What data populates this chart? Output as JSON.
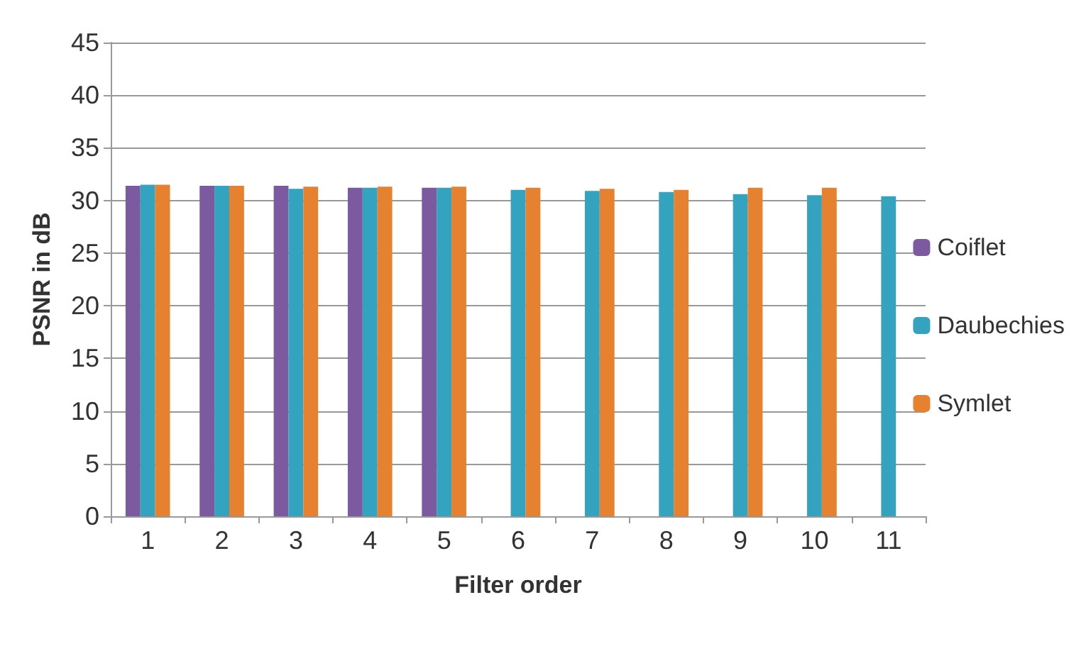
{
  "chart_data": {
    "type": "bar",
    "xlabel": "Filter order",
    "ylabel": "PSNR in dB",
    "categories": [
      "1",
      "2",
      "3",
      "4",
      "5",
      "6",
      "7",
      "8",
      "9",
      "10",
      "11"
    ],
    "series": [
      {
        "name": "Coiflet",
        "color": "#7b5aa0",
        "values": [
          31.4,
          31.4,
          31.4,
          31.2,
          31.2,
          null,
          null,
          null,
          null,
          null,
          null
        ]
      },
      {
        "name": "Daubechies",
        "color": "#33a3bf",
        "values": [
          31.5,
          31.4,
          31.1,
          31.2,
          31.2,
          31.0,
          30.9,
          30.8,
          30.6,
          30.5,
          30.4
        ]
      },
      {
        "name": "Symlet",
        "color": "#e6822f",
        "values": [
          31.5,
          31.4,
          31.3,
          31.3,
          31.3,
          31.2,
          31.1,
          31.0,
          31.2,
          31.2,
          null
        ]
      }
    ],
    "ylim": [
      0,
      45
    ],
    "yticks": [
      0,
      5,
      10,
      15,
      20,
      25,
      30,
      35,
      40,
      45
    ],
    "grid": "y",
    "legend": "right"
  }
}
